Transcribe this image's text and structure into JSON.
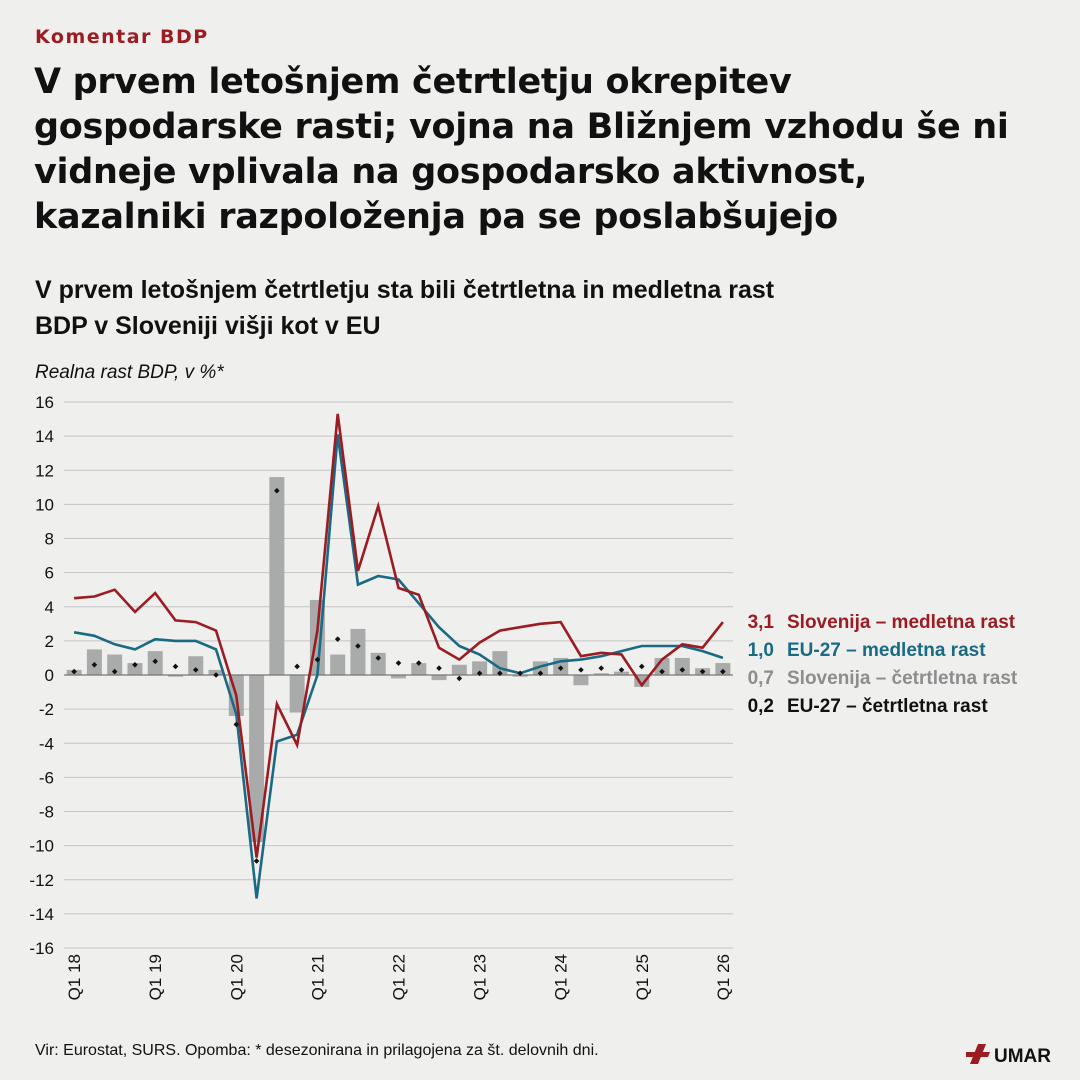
{
  "kicker": "Komentar BDP",
  "headline": "V prvem letošnjem četrtletju okrepitev gospodarske rasti; vojna na Bližnjem vzhodu še ni vidneje vplivala na gospodarsko aktivnost, kazalniki razpoloženja pa se poslabšujejo",
  "footer": {
    "source": "Vir: Eurostat, SURS. Opomba: * desezonirana in prilagojena za št. delovnih dni.",
    "logo_text": "UMAR"
  },
  "colors": {
    "slovenia_yoy": "#9b1c22",
    "eu_yoy": "#1a6a84",
    "slovenia_qoq": "#a9abab",
    "eu_qoq": "#111111",
    "grid": "#c4c4c4"
  },
  "chart_data": {
    "type": "bar",
    "title": "V prvem letošnjem četrtletju sta bili četrtletna in medletna rast BDP v Sloveniji višji kot v EU",
    "ylabel": "Realna rast BDP, v %*",
    "ylim": [
      -16,
      16
    ],
    "yticks": [
      16,
      14,
      12,
      10,
      8,
      6,
      4,
      2,
      0,
      -2,
      -4,
      -6,
      -8,
      -10,
      -12,
      -14,
      -16
    ],
    "xtick_labels": [
      "Q1 18",
      "Q1 19",
      "Q1 20",
      "Q1 21",
      "Q1 22",
      "Q1 23",
      "Q1 24",
      "Q1 25",
      "Q1 26"
    ],
    "grid": true,
    "legend_position": "right",
    "x": [
      "Q1 18",
      "Q2 18",
      "Q3 18",
      "Q4 18",
      "Q1 19",
      "Q2 19",
      "Q3 19",
      "Q4 19",
      "Q1 20",
      "Q2 20",
      "Q3 20",
      "Q4 20",
      "Q1 21",
      "Q2 21",
      "Q3 21",
      "Q4 21",
      "Q1 22",
      "Q2 22",
      "Q3 22",
      "Q4 22",
      "Q1 23",
      "Q2 23",
      "Q3 23",
      "Q4 23",
      "Q1 24",
      "Q2 24",
      "Q3 24",
      "Q4 24",
      "Q1 25",
      "Q2 25",
      "Q3 25",
      "Q4 25",
      "Q1 26"
    ],
    "series": [
      {
        "name": "Slovenija – medletna rast",
        "kind": "line",
        "last_label": "3,1",
        "values": [
          4.5,
          4.6,
          5.0,
          3.7,
          4.8,
          3.2,
          3.1,
          2.6,
          -1.2,
          -10.7,
          -1.7,
          -4.1,
          2.6,
          15.3,
          6.1,
          9.9,
          5.1,
          4.7,
          1.6,
          0.9,
          1.9,
          2.6,
          2.8,
          3.0,
          3.1,
          1.1,
          1.3,
          1.2,
          -0.6,
          0.9,
          1.8,
          1.6,
          3.1
        ]
      },
      {
        "name": "EU-27 – medletna rast",
        "kind": "line",
        "last_label": "1,0",
        "values": [
          2.5,
          2.3,
          1.8,
          1.5,
          2.1,
          2.0,
          2.0,
          1.5,
          -2.3,
          -13.1,
          -3.9,
          -3.5,
          0.0,
          14.1,
          5.3,
          5.8,
          5.6,
          4.2,
          2.8,
          1.7,
          1.2,
          0.4,
          0.1,
          0.5,
          0.8,
          0.9,
          1.1,
          1.4,
          1.7,
          1.7,
          1.7,
          1.4,
          1.0
        ]
      },
      {
        "name": "Slovenija – četrtletna rast",
        "kind": "bar",
        "last_label": "0,7",
        "values": [
          0.3,
          1.5,
          1.2,
          0.7,
          1.4,
          -0.1,
          1.1,
          0.3,
          -2.4,
          -9.8,
          11.6,
          -2.2,
          4.4,
          1.2,
          2.7,
          1.3,
          -0.2,
          0.7,
          -0.3,
          0.6,
          0.8,
          1.4,
          -0.1,
          0.8,
          1.0,
          -0.6,
          0.1,
          0.2,
          -0.7,
          1.0,
          1.0,
          0.4,
          0.7
        ]
      },
      {
        "name": "EU-27 – četrtletna rast",
        "kind": "dot",
        "last_label": "0,2",
        "values": [
          0.2,
          0.6,
          0.2,
          0.6,
          0.8,
          0.5,
          0.3,
          0.0,
          -2.9,
          -10.9,
          10.8,
          0.5,
          0.9,
          2.1,
          1.7,
          1.0,
          0.7,
          0.7,
          0.4,
          -0.2,
          0.1,
          0.1,
          0.1,
          0.1,
          0.4,
          0.3,
          0.4,
          0.3,
          0.5,
          0.2,
          0.3,
          0.2,
          0.2
        ]
      }
    ]
  }
}
